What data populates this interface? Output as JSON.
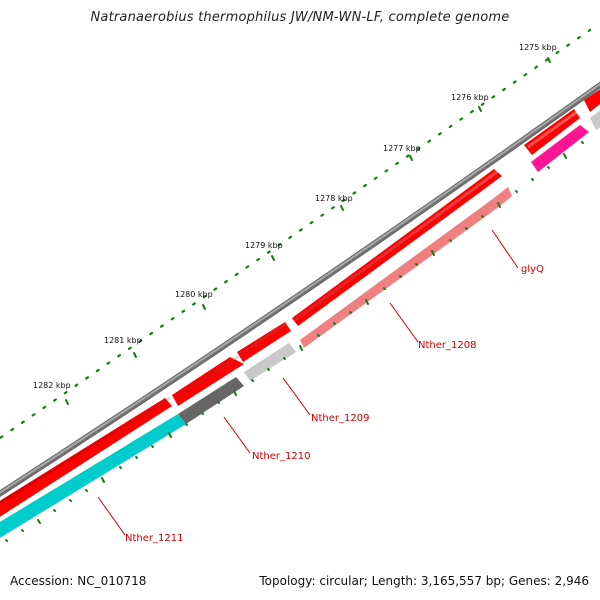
{
  "title": "Natranaerobius thermophilus JW/NM-WN-LF, complete genome",
  "footer": {
    "accession": "Accession: NC_010718",
    "topology": "Topology: circular; Length: 3,165,557 bp; Genes: 2,946"
  },
  "ticks": [
    {
      "label": "1275 kbp"
    },
    {
      "label": "1276 kbp"
    },
    {
      "label": "1277 kbp"
    },
    {
      "label": "1278 kbp"
    },
    {
      "label": "1279 kbp"
    },
    {
      "label": "1280 kbp"
    },
    {
      "label": "1281 kbp"
    },
    {
      "label": "1282 kbp"
    }
  ],
  "genes": [
    {
      "label": "glyQ",
      "color": "#f08080"
    },
    {
      "label": "Nther_1208",
      "color": "#f08080"
    },
    {
      "label": "Nther_1209",
      "color": "#c8c8c8"
    },
    {
      "label": "Nther_1210",
      "color": "#666666"
    },
    {
      "label": "Nther_1211",
      "color": "#00cccc"
    }
  ],
  "colors": {
    "backbone": "#808080",
    "forward_strand": "#ff0000",
    "top_partial": "#ff1493",
    "ticks": "#1a7a1a",
    "labels": "#cc0000"
  }
}
